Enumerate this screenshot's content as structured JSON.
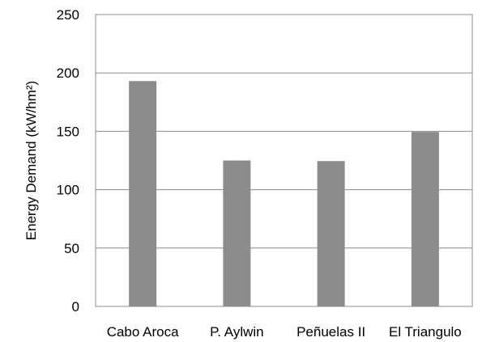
{
  "chart_data": {
    "type": "bar",
    "categories": [
      "Cabo Aroca",
      "P. Aylwin",
      "Peñuelas II",
      "El Triangulo"
    ],
    "values": [
      193,
      125,
      124.5,
      149.5
    ],
    "title": "",
    "xlabel": "",
    "ylabel": "Energy Demand (kW/hm²)",
    "ylim": [
      0,
      250
    ],
    "yticks": [
      "0",
      "50",
      "100",
      "150",
      "200",
      "250"
    ],
    "grid": true,
    "legend": "none",
    "colors": {
      "bar": "#8c8c8c",
      "grid": "#8c8c8c",
      "frame": "#8c8c8c"
    }
  }
}
